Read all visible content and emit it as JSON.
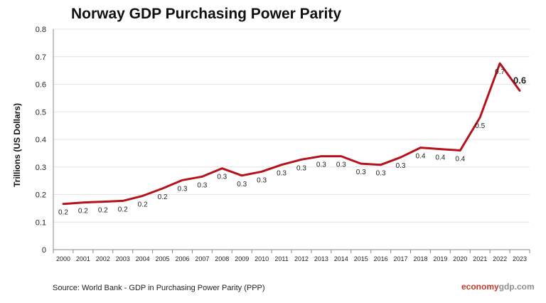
{
  "chart_data": {
    "type": "line",
    "title": "Norway GDP Purchasing Power Parity",
    "ylabel": "Trillions (US Dollars)",
    "xlabel": "",
    "ylim": [
      0,
      0.8
    ],
    "yticks": [
      "0",
      "0.1",
      "0.2",
      "0.3",
      "0.4",
      "0.5",
      "0.6",
      "0.7",
      "0.8"
    ],
    "grid": true,
    "categories": [
      "2000",
      "2001",
      "2002",
      "2003",
      "2004",
      "2005",
      "2006",
      "2007",
      "2008",
      "2009",
      "2010",
      "2011",
      "2012",
      "2013",
      "2014",
      "2015",
      "2016",
      "2017",
      "2018",
      "2019",
      "2020",
      "2021",
      "2022",
      "2023"
    ],
    "series": [
      {
        "values": [
          0.166,
          0.171,
          0.174,
          0.177,
          0.195,
          0.222,
          0.252,
          0.265,
          0.295,
          0.269,
          0.283,
          0.308,
          0.327,
          0.339,
          0.339,
          0.312,
          0.308,
          0.335,
          0.37,
          0.365,
          0.36,
          0.48,
          0.676,
          0.577
        ],
        "labels": [
          "0.2",
          "0.2",
          "0.2",
          "0.2",
          "0.2",
          "0.2",
          "0.3",
          "0.3",
          "0.3",
          "0.3",
          "0.3",
          "0.3",
          "0.3",
          "0.3",
          "0.3",
          "0.3",
          "0.3",
          "0.3",
          "0.4",
          "0.4",
          "0.4",
          "0.5",
          "0.7",
          "0.6"
        ],
        "color": "#b5121b"
      }
    ]
  },
  "footer": {
    "source": "Source:  World Bank -  GDP  in Purchasing Power Parity (PPP)",
    "brand_part1": "economy",
    "brand_part2": "gdp.com"
  }
}
